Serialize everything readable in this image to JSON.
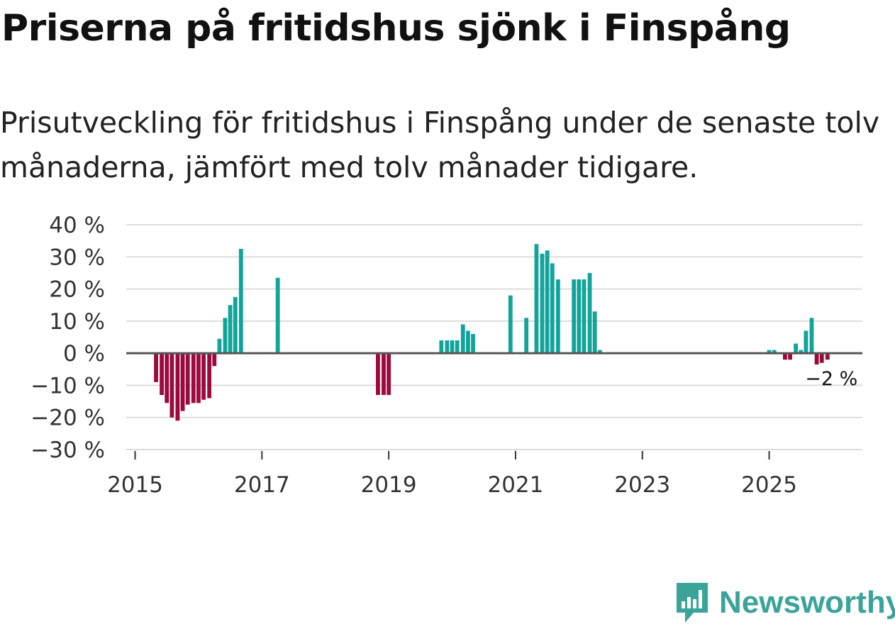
{
  "title": "Priserna på fritidshus sjönk i Finspång",
  "subtitle": "Prisutveckling för fritidshus i Finspång under de senaste tolv månaderna, jämfört med tolv månader tidigare.",
  "brand": {
    "name": "Newsworthy",
    "logo_icon": "newsworthy-logo-icon"
  },
  "colors": {
    "positive": "#12a39a",
    "negative": "#9b0a3d",
    "grid": "#dddddd",
    "zero": "#555555",
    "brand": "#3aa39a"
  },
  "chart_data": {
    "type": "bar",
    "title": "Priserna på fritidshus sjönk i Finspång",
    "xlabel": "",
    "ylabel": "",
    "ylim": [
      -30,
      40
    ],
    "xlim": [
      2014.86,
      2026.47
    ],
    "yticks": [
      40,
      30,
      20,
      10,
      0,
      -10,
      -20,
      -30
    ],
    "ytick_labels": [
      "40 %",
      "30 %",
      "20 %",
      "10 %",
      "0 %",
      "−10 %",
      "−20 %",
      "−30 %"
    ],
    "xticks": [
      2015,
      2017,
      2019,
      2021,
      2023,
      2025
    ],
    "xtick_labels": [
      "2015",
      "2017",
      "2019",
      "2021",
      "2023",
      "2025"
    ],
    "annotation": {
      "text": "−2 %",
      "x": 2025.87,
      "y": -2
    },
    "grid": true,
    "series": [
      {
        "name": "Prisutveckling",
        "points": [
          {
            "x": 2015.33,
            "y": -9
          },
          {
            "x": 2015.42,
            "y": -13
          },
          {
            "x": 2015.5,
            "y": -15.5
          },
          {
            "x": 2015.58,
            "y": -20
          },
          {
            "x": 2015.67,
            "y": -21
          },
          {
            "x": 2015.75,
            "y": -18
          },
          {
            "x": 2015.83,
            "y": -16
          },
          {
            "x": 2015.92,
            "y": -15.5
          },
          {
            "x": 2016.0,
            "y": -15.5
          },
          {
            "x": 2016.08,
            "y": -14.5
          },
          {
            "x": 2016.17,
            "y": -14
          },
          {
            "x": 2016.25,
            "y": -4
          },
          {
            "x": 2016.33,
            "y": 4.5
          },
          {
            "x": 2016.42,
            "y": 11
          },
          {
            "x": 2016.5,
            "y": 15
          },
          {
            "x": 2016.58,
            "y": 17.5
          },
          {
            "x": 2016.67,
            "y": 32.5
          },
          {
            "x": 2017.25,
            "y": 23.5
          },
          {
            "x": 2018.83,
            "y": -13
          },
          {
            "x": 2018.92,
            "y": -13
          },
          {
            "x": 2019.0,
            "y": -13
          },
          {
            "x": 2019.83,
            "y": 4
          },
          {
            "x": 2019.92,
            "y": 4
          },
          {
            "x": 2020.0,
            "y": 4
          },
          {
            "x": 2020.08,
            "y": 4
          },
          {
            "x": 2020.17,
            "y": 9
          },
          {
            "x": 2020.25,
            "y": 7
          },
          {
            "x": 2020.33,
            "y": 6
          },
          {
            "x": 2020.92,
            "y": 18
          },
          {
            "x": 2021.17,
            "y": 11
          },
          {
            "x": 2021.33,
            "y": 34
          },
          {
            "x": 2021.42,
            "y": 31
          },
          {
            "x": 2021.5,
            "y": 32
          },
          {
            "x": 2021.58,
            "y": 28
          },
          {
            "x": 2021.67,
            "y": 23
          },
          {
            "x": 2021.92,
            "y": 23
          },
          {
            "x": 2022.0,
            "y": 23
          },
          {
            "x": 2022.08,
            "y": 23
          },
          {
            "x": 2022.17,
            "y": 25
          },
          {
            "x": 2022.25,
            "y": 13
          },
          {
            "x": 2022.33,
            "y": 1
          },
          {
            "x": 2025.0,
            "y": 1
          },
          {
            "x": 2025.08,
            "y": 1
          },
          {
            "x": 2025.25,
            "y": -2
          },
          {
            "x": 2025.33,
            "y": -2
          },
          {
            "x": 2025.42,
            "y": 3
          },
          {
            "x": 2025.5,
            "y": 1
          },
          {
            "x": 2025.58,
            "y": 7
          },
          {
            "x": 2025.67,
            "y": 11
          },
          {
            "x": 2025.75,
            "y": -3.5
          },
          {
            "x": 2025.83,
            "y": -3
          },
          {
            "x": 2025.92,
            "y": -2
          }
        ]
      }
    ]
  }
}
